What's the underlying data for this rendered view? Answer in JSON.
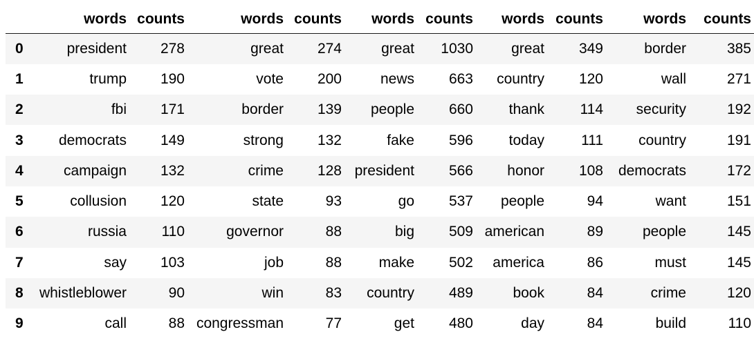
{
  "table": {
    "columns": [
      "words",
      "counts",
      "words",
      "counts",
      "words",
      "counts",
      "words",
      "counts",
      "words",
      "counts"
    ],
    "rows": [
      {
        "index": "0",
        "cells": [
          "president",
          "278",
          "great",
          "274",
          "great",
          "1030",
          "great",
          "349",
          "border",
          "385"
        ]
      },
      {
        "index": "1",
        "cells": [
          "trump",
          "190",
          "vote",
          "200",
          "news",
          "663",
          "country",
          "120",
          "wall",
          "271"
        ]
      },
      {
        "index": "2",
        "cells": [
          "fbi",
          "171",
          "border",
          "139",
          "people",
          "660",
          "thank",
          "114",
          "security",
          "192"
        ]
      },
      {
        "index": "3",
        "cells": [
          "democrats",
          "149",
          "strong",
          "132",
          "fake",
          "596",
          "today",
          "111",
          "country",
          "191"
        ]
      },
      {
        "index": "4",
        "cells": [
          "campaign",
          "132",
          "crime",
          "128",
          "president",
          "566",
          "honor",
          "108",
          "democrats",
          "172"
        ]
      },
      {
        "index": "5",
        "cells": [
          "collusion",
          "120",
          "state",
          "93",
          "go",
          "537",
          "people",
          "94",
          "want",
          "151"
        ]
      },
      {
        "index": "6",
        "cells": [
          "russia",
          "110",
          "governor",
          "88",
          "big",
          "509",
          "american",
          "89",
          "people",
          "145"
        ]
      },
      {
        "index": "7",
        "cells": [
          "say",
          "103",
          "job",
          "88",
          "make",
          "502",
          "america",
          "86",
          "must",
          "145"
        ]
      },
      {
        "index": "8",
        "cells": [
          "whistleblower",
          "90",
          "win",
          "83",
          "country",
          "489",
          "book",
          "84",
          "crime",
          "120"
        ]
      },
      {
        "index": "9",
        "cells": [
          "call",
          "88",
          "congressman",
          "77",
          "get",
          "480",
          "day",
          "84",
          "build",
          "110"
        ]
      }
    ]
  }
}
